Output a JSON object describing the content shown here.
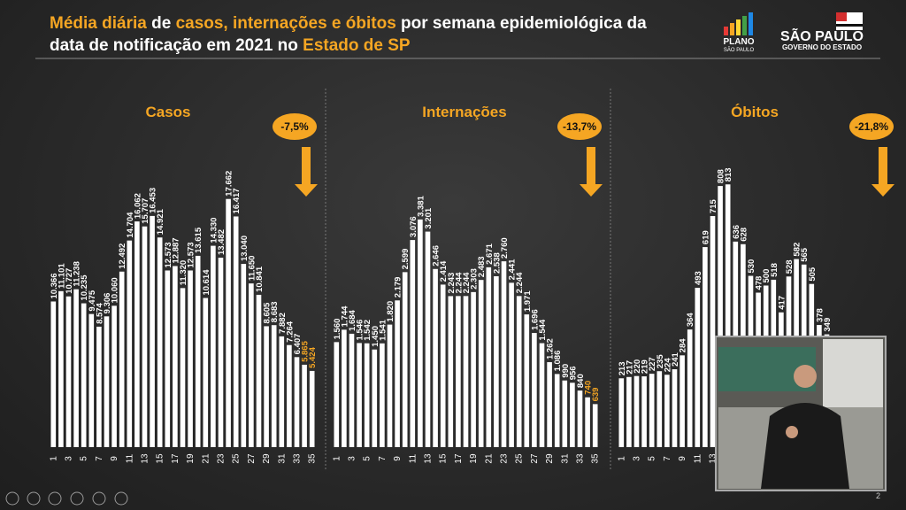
{
  "header": {
    "title_lines": [
      [
        {
          "text": "Média diária",
          "color": "#f5a623"
        },
        {
          "text": " de ",
          "color": "#ffffff"
        },
        {
          "text": "casos, internações e óbitos",
          "color": "#f5a623"
        },
        {
          "text": " por semana epidemiológica da",
          "color": "#ffffff"
        }
      ],
      [
        {
          "text": "data de notificação em 2021 no ",
          "color": "#ffffff"
        },
        {
          "text": "Estado de SP",
          "color": "#f5a623"
        }
      ]
    ],
    "logo_plano": "PLANO",
    "logo_plano_sub": "SÃO PAULO",
    "logo_sp": "SÃO PAULO",
    "logo_sp_sub": "GOVERNO DO ESTADO"
  },
  "chart_data": [
    {
      "type": "bar",
      "title": "Casos",
      "annotation": "-7,5%",
      "color": "#ffffff",
      "highlight_color": "#f5a623",
      "highlight_last": 2,
      "ylim": [
        0,
        23000
      ],
      "categories": [
        "1",
        null,
        "3",
        null,
        "5",
        null,
        "7",
        null,
        "9",
        null,
        "11",
        null,
        "13",
        null,
        "15",
        null,
        "17",
        null,
        "19",
        null,
        "21",
        null,
        "23",
        null,
        "25",
        null,
        "27",
        null,
        "29",
        null,
        "31",
        null,
        "33",
        null,
        "35"
      ],
      "values": [
        10366,
        11101,
        10727,
        11238,
        10235,
        9475,
        8574,
        9306,
        10060,
        12492,
        14704,
        16062,
        15707,
        16453,
        14921,
        12573,
        12887,
        11320,
        12573,
        13615,
        10614,
        14330,
        13482,
        17662,
        16417,
        13040,
        11650,
        10841,
        8605,
        8683,
        7882,
        7264,
        6407,
        5865,
        5424
      ],
      "value_labels": [
        "10.366",
        "11.101",
        "10.727",
        "11.238",
        "10.235",
        "9.475",
        "8.574",
        "9.306",
        "10.060",
        "12.492",
        "14.704",
        "16.062",
        "15.707",
        "16.453",
        "14.921",
        "12.573",
        "12.887",
        "11.320",
        "12.573",
        "13.615",
        "10.614",
        "14.330",
        "13.482",
        "17.662",
        "16.417",
        "13.040",
        "11.650",
        "10.841",
        "8.605",
        "8.683",
        "7.882",
        "7.264",
        "6.407",
        "5.865",
        "5.424"
      ]
    },
    {
      "type": "bar",
      "title": "Internações",
      "annotation": "-13,7%",
      "color": "#ffffff",
      "highlight_color": "#f5a623",
      "highlight_last": 2,
      "ylim": [
        0,
        4800
      ],
      "categories": [
        "1",
        null,
        "3",
        null,
        "5",
        null,
        "7",
        null,
        "9",
        null,
        "11",
        null,
        "13",
        null,
        "15",
        null,
        "17",
        null,
        "19",
        null,
        "21",
        null,
        "23",
        null,
        "25",
        null,
        "27",
        null,
        "29",
        null,
        "31",
        null,
        "33",
        null,
        "35"
      ],
      "values": [
        1560,
        1744,
        1684,
        1546,
        1542,
        1450,
        1541,
        1820,
        2179,
        2599,
        3076,
        3381,
        3201,
        2646,
        2414,
        2243,
        2244,
        2244,
        2303,
        2483,
        2671,
        2538,
        2760,
        2441,
        2244,
        1971,
        1696,
        1544,
        1262,
        1086,
        990,
        956,
        840,
        740,
        639
      ],
      "value_labels": [
        "1.560",
        "1.744",
        "1.684",
        "1.546",
        "1.542",
        "1.450",
        "1.541",
        "1.820",
        "2.179",
        "2.599",
        "3.076",
        "3.381",
        "3.201",
        "2.646",
        "2.414",
        "2.243",
        "2.244",
        "2.244",
        "2.303",
        "2.483",
        "2.671",
        "2.538",
        "2.760",
        "2.441",
        "2.244",
        "1.971",
        "1.696",
        "1.544",
        "1.262",
        "1.086",
        "990",
        "956",
        "840",
        "740",
        "639"
      ]
    },
    {
      "type": "bar",
      "title": "Óbitos",
      "annotation": "-21,8%",
      "color": "#ffffff",
      "highlight_color": "#f5a623",
      "highlight_last": 0,
      "ylim": [
        0,
        1000
      ],
      "categories": [
        "1",
        null,
        "3",
        null,
        "5",
        null,
        "7",
        null,
        "9",
        null,
        "11",
        null,
        "13",
        null,
        null,
        null,
        null,
        null,
        null,
        null,
        null,
        null,
        null,
        null,
        null,
        null,
        null,
        null,
        null,
        null,
        null,
        null,
        null,
        null,
        null
      ],
      "values": [
        213,
        217,
        220,
        219,
        227,
        235,
        224,
        241,
        284,
        364,
        493,
        619,
        715,
        808,
        813,
        636,
        628,
        530,
        478,
        500,
        518,
        417,
        528,
        582,
        565,
        505,
        378,
        349,
        null,
        null,
        null,
        null,
        null,
        null,
        null
      ],
      "value_labels": [
        "213",
        "217",
        "220",
        "219",
        "227",
        "235",
        "224",
        "241",
        "284",
        "364",
        "493",
        "619",
        "715",
        "808",
        "813",
        "636",
        "628",
        "530",
        "478",
        "500",
        "518",
        "417",
        "528",
        "582",
        "565",
        "505",
        "378",
        "349",
        null,
        null,
        null,
        null,
        null,
        null,
        null
      ]
    }
  ],
  "footer": {
    "page": "2"
  }
}
